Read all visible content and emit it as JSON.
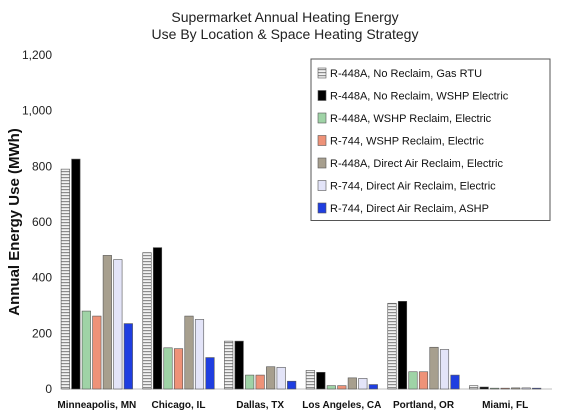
{
  "chart_data": {
    "type": "bar",
    "title": "Supermarket Annual Heating Energy",
    "subtitle": "Use By Location & Space Heating Strategy",
    "xlabel": "",
    "ylabel": "Annual Energy Use (MWh)",
    "ylim": [
      0,
      1200
    ],
    "yticks": [
      "0",
      "200",
      "400",
      "600",
      "800",
      "1,000",
      "1,200"
    ],
    "ytick_values": [
      0,
      200,
      400,
      600,
      800,
      1000,
      1200
    ],
    "grid": false,
    "legend_position": "top-right",
    "categories": [
      "Minneapolis, MN",
      "Chicago, IL",
      "Dallas, TX",
      "Los Angeles, CA",
      "Portland, OR",
      "Miami, FL"
    ],
    "series": [
      {
        "name": "R-448A, No Reclaim, Gas RTU",
        "color": "#d9d9d9",
        "pattern": "hstripe",
        "values": [
          790,
          490,
          172,
          67,
          308,
          12
        ]
      },
      {
        "name": "R-448A, No Reclaim, WSHP Electric",
        "color": "#000000",
        "values": [
          826,
          508,
          172,
          60,
          315,
          7
        ]
      },
      {
        "name": "R-448A, WSHP Reclaim,  Electric",
        "color": "#9fd3a6",
        "values": [
          280,
          148,
          50,
          12,
          62,
          3
        ]
      },
      {
        "name": "R-744, WSHP Reclaim,  Electric",
        "color": "#ee9278",
        "values": [
          262,
          145,
          50,
          12,
          62,
          3
        ]
      },
      {
        "name": "R-448A, Direct Air Reclaim, Electric",
        "color": "#a79f8e",
        "values": [
          480,
          262,
          80,
          40,
          150,
          4
        ]
      },
      {
        "name": "R-744, Direct Air Reclaim,  Electric",
        "color": "#e3e4f8",
        "values": [
          465,
          250,
          78,
          38,
          142,
          4
        ]
      },
      {
        "name": "R-744, Direct Air Reclaim,  ASHP",
        "color": "#1f3ee0",
        "values": [
          235,
          113,
          28,
          16,
          50,
          3
        ]
      }
    ]
  }
}
